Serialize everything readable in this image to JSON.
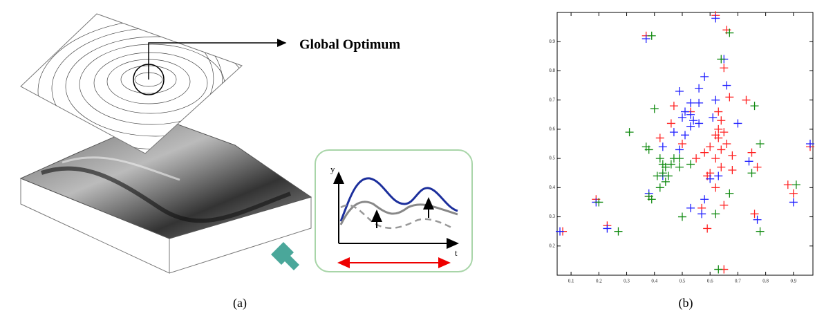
{
  "panel_a": {
    "annotation": "Global Optimum",
    "inset_y_label": "y",
    "inset_x_label": "t",
    "caption": "(a)"
  },
  "chart_data": {
    "type": "scatter",
    "caption": "(b)",
    "xlim": [
      0.05,
      0.97
    ],
    "ylim": [
      0.1,
      1.0
    ],
    "xticks": [
      0.1,
      0.2,
      0.3,
      0.4,
      0.5,
      0.6,
      0.7,
      0.8,
      0.9
    ],
    "yticks": [
      0.2,
      0.3,
      0.4,
      0.5,
      0.6,
      0.7,
      0.8,
      0.9
    ],
    "series": [
      {
        "color": "#ff2020",
        "x": [
          0.62,
          0.37,
          0.65,
          0.66,
          0.63,
          0.67,
          0.73,
          0.64,
          0.63,
          0.65,
          0.63,
          0.62,
          0.66,
          0.6,
          0.64,
          0.58,
          0.68,
          0.62,
          0.64,
          0.68,
          0.6,
          0.62,
          0.77,
          0.75,
          0.47,
          0.46,
          0.53,
          0.42,
          0.5,
          0.55,
          0.65,
          0.59,
          0.38,
          0.19,
          0.23,
          0.07,
          0.88,
          0.9,
          0.76,
          0.65,
          0.96,
          0.59,
          0.57
        ],
        "values": [
          0.99,
          0.92,
          0.81,
          0.94,
          0.66,
          0.71,
          0.7,
          0.63,
          0.6,
          0.59,
          0.57,
          0.58,
          0.55,
          0.54,
          0.53,
          0.52,
          0.51,
          0.5,
          0.47,
          0.46,
          0.45,
          0.4,
          0.47,
          0.52,
          0.68,
          0.62,
          0.66,
          0.57,
          0.55,
          0.5,
          0.34,
          0.26,
          0.37,
          0.36,
          0.27,
          0.25,
          0.41,
          0.38,
          0.31,
          0.12,
          0.54,
          0.44,
          0.33
        ]
      },
      {
        "color": "#2020ff",
        "x": [
          0.37,
          0.62,
          0.65,
          0.53,
          0.56,
          0.58,
          0.49,
          0.56,
          0.51,
          0.53,
          0.5,
          0.54,
          0.53,
          0.51,
          0.56,
          0.47,
          0.61,
          0.62,
          0.66,
          0.43,
          0.49,
          0.63,
          0.6,
          0.58,
          0.53,
          0.38,
          0.43,
          0.74,
          0.7,
          0.19,
          0.23,
          0.77,
          0.9,
          0.06,
          0.96,
          0.57
        ],
        "values": [
          0.91,
          0.98,
          0.84,
          0.69,
          0.74,
          0.78,
          0.73,
          0.69,
          0.66,
          0.65,
          0.64,
          0.63,
          0.61,
          0.58,
          0.62,
          0.59,
          0.64,
          0.7,
          0.75,
          0.54,
          0.53,
          0.44,
          0.43,
          0.36,
          0.33,
          0.38,
          0.44,
          0.49,
          0.62,
          0.35,
          0.26,
          0.29,
          0.35,
          0.25,
          0.55,
          0.31
        ]
      },
      {
        "color": "#108a10",
        "x": [
          0.39,
          0.67,
          0.64,
          0.4,
          0.31,
          0.37,
          0.38,
          0.42,
          0.43,
          0.44,
          0.43,
          0.45,
          0.41,
          0.44,
          0.46,
          0.49,
          0.53,
          0.42,
          0.38,
          0.39,
          0.2,
          0.27,
          0.5,
          0.62,
          0.67,
          0.75,
          0.78,
          0.76,
          0.78,
          0.91,
          0.63,
          0.49,
          0.47
        ],
        "values": [
          0.92,
          0.93,
          0.84,
          0.67,
          0.59,
          0.54,
          0.53,
          0.5,
          0.48,
          0.47,
          0.45,
          0.44,
          0.44,
          0.42,
          0.48,
          0.47,
          0.48,
          0.4,
          0.37,
          0.36,
          0.35,
          0.25,
          0.3,
          0.31,
          0.38,
          0.45,
          0.55,
          0.68,
          0.25,
          0.41,
          0.12,
          0.5,
          0.5
        ]
      }
    ]
  }
}
